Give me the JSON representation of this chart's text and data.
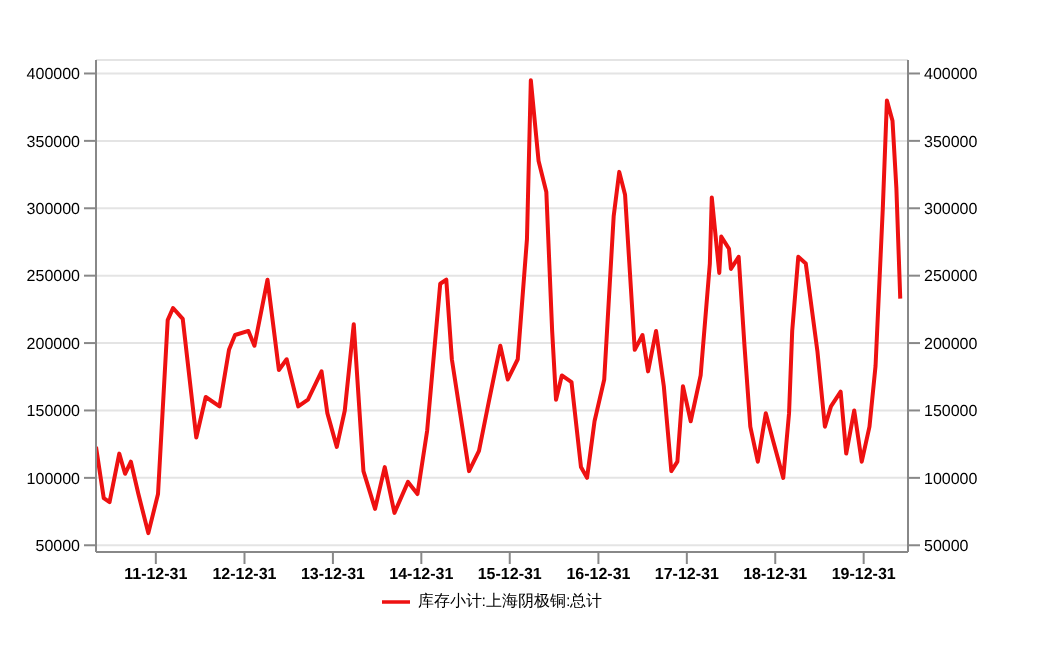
{
  "chart_data": {
    "type": "line",
    "x": [
      "2011-04-28",
      "2011-05-30",
      "2011-06-23",
      "2011-08-02",
      "2011-08-26",
      "2011-09-19",
      "2011-10-20",
      "2011-11-30",
      "2012-01-09",
      "2012-02-18",
      "2012-03-11",
      "2012-04-20",
      "2012-06-15",
      "2012-07-24",
      "2012-09-19",
      "2012-10-28",
      "2012-11-22",
      "2013-01-16",
      "2013-02-10",
      "2013-04-05",
      "2013-05-22",
      "2013-06-23",
      "2013-08-10",
      "2013-09-19",
      "2013-11-14",
      "2013-12-08",
      "2014-01-16",
      "2014-02-18",
      "2014-03-27",
      "2014-05-06",
      "2014-06-23",
      "2014-08-02",
      "2014-09-11",
      "2014-11-06",
      "2014-12-15",
      "2015-01-24",
      "2015-03-19",
      "2015-04-13",
      "2015-05-06",
      "2015-07-16",
      "2015-08-26",
      "2015-10-05",
      "2015-11-22",
      "2015-12-23",
      "2016-02-02",
      "2016-03-11",
      "2016-03-27",
      "2016-04-28",
      "2016-05-30",
      "2016-06-23",
      "2016-07-09",
      "2016-08-02",
      "2016-09-11",
      "2016-10-20",
      "2016-11-14",
      "2016-12-15",
      "2017-01-24",
      "2017-03-04",
      "2017-03-27",
      "2017-04-20",
      "2017-05-30",
      "2017-07-01",
      "2017-07-24",
      "2017-08-26",
      "2017-09-27",
      "2017-10-28",
      "2017-11-22",
      "2017-12-15",
      "2018-01-16",
      "2018-02-26",
      "2018-04-05",
      "2018-04-13",
      "2018-05-14",
      "2018-05-22",
      "2018-06-23",
      "2018-07-01",
      "2018-08-02",
      "2018-08-26",
      "2018-09-19",
      "2018-10-20",
      "2018-11-22",
      "2018-12-23",
      "2019-02-02",
      "2019-02-26",
      "2019-03-11",
      "2019-04-05",
      "2019-05-06",
      "2019-06-23",
      "2019-07-24",
      "2019-08-18",
      "2019-09-27",
      "2019-10-20",
      "2019-11-22",
      "2019-12-23",
      "2020-01-24",
      "2020-02-18",
      "2020-03-19",
      "2020-04-05",
      "2020-04-28",
      "2020-05-14",
      "2020-05-30"
    ],
    "series": [
      {
        "name": "库存小计:上海阴极铜:总计",
        "color": "#ee1111",
        "values": [
          123000,
          85000,
          82000,
          118000,
          103000,
          112000,
          88000,
          59000,
          88000,
          217000,
          226000,
          218000,
          130000,
          160000,
          153000,
          195000,
          206000,
          209000,
          198000,
          247000,
          180000,
          188000,
          153000,
          158000,
          179000,
          148000,
          123000,
          150000,
          214000,
          105000,
          77000,
          108000,
          74000,
          97000,
          88000,
          135000,
          244000,
          247000,
          188000,
          105000,
          120000,
          156000,
          198000,
          173000,
          188000,
          277000,
          395000,
          335000,
          312000,
          209000,
          158000,
          176000,
          171000,
          108000,
          100000,
          142000,
          173000,
          294000,
          327000,
          310000,
          195000,
          206000,
          179000,
          209000,
          168000,
          105000,
          112000,
          168000,
          142000,
          176000,
          259000,
          308000,
          252000,
          279000,
          270000,
          255000,
          264000,
          198000,
          138000,
          112000,
          148000,
          127000,
          100000,
          148000,
          209000,
          264000,
          259000,
          194000,
          138000,
          153000,
          164000,
          118000,
          150000,
          112000,
          138000,
          183000,
          300000,
          380000,
          365000,
          315000,
          233000
        ]
      }
    ],
    "xlim": [
      "2011-04-28",
      "2020-07-01"
    ],
    "xticks": [
      {
        "value": "2011-12-31",
        "label": "11-12-31"
      },
      {
        "value": "2012-12-31",
        "label": "12-12-31"
      },
      {
        "value": "2013-12-31",
        "label": "13-12-31"
      },
      {
        "value": "2014-12-31",
        "label": "14-12-31"
      },
      {
        "value": "2015-12-31",
        "label": "15-12-31"
      },
      {
        "value": "2016-12-31",
        "label": "16-12-31"
      },
      {
        "value": "2017-12-31",
        "label": "17-12-31"
      },
      {
        "value": "2018-12-31",
        "label": "18-12-31"
      },
      {
        "value": "2019-12-31",
        "label": "19-12-31"
      }
    ],
    "ylim": [
      45000,
      410000
    ],
    "yticks": [
      50000,
      100000,
      150000,
      200000,
      250000,
      300000,
      350000,
      400000
    ],
    "y2lim": [
      45000,
      410000
    ],
    "y2ticks": [
      50000,
      100000,
      150000,
      200000,
      250000,
      300000,
      350000,
      400000
    ],
    "grid": "y",
    "legend": "bottom",
    "marker": "none",
    "line_style": "solid"
  }
}
